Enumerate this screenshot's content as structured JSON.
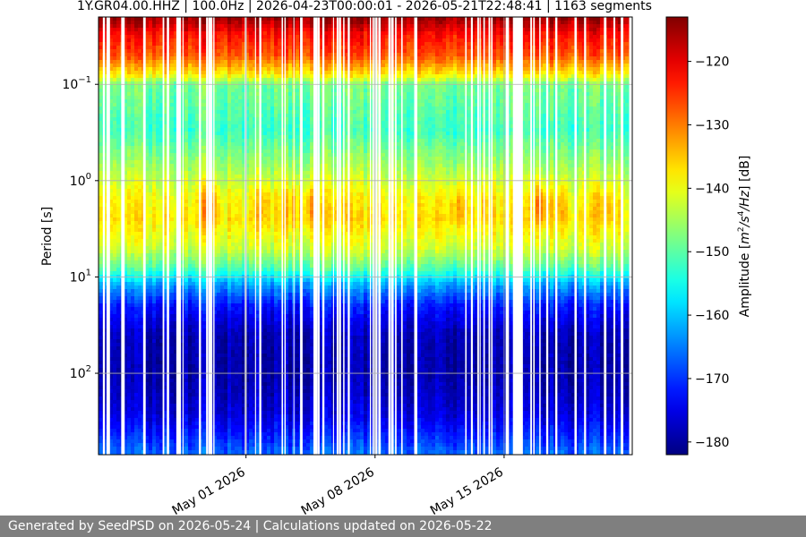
{
  "chart_data": {
    "type": "heatmap",
    "title": "1Y.GR04.00.HHZ | 100.0Hz | 2026-04-23T00:00:01 - 2026-05-21T22:48:41 | 1163 segments",
    "xlabel": "",
    "ylabel": "Period [s]",
    "colorbar_label": "Amplitude [m²/s⁴/Hz] [dB]",
    "colorbar_label_parts": {
      "pre": "Amplitude [",
      "base": "m",
      "exp1": "2",
      "slash1": "/",
      "s": "s",
      "exp2": "4",
      "slash2": "/",
      "hz": "Hz",
      "post": "] [dB]"
    },
    "colormap": "jet",
    "x_range": [
      "2026-04-23T00:00:01",
      "2026-05-21T22:48:41"
    ],
    "y_scale": "log",
    "y_inverted": true,
    "y_range": [
      0.02,
      700
    ],
    "y_ticks": [
      {
        "value": 0.1,
        "base": "10",
        "exp": "−1"
      },
      {
        "value": 1,
        "base": "10",
        "exp": "0"
      },
      {
        "value": 10,
        "base": "10",
        "exp": "1"
      },
      {
        "value": 100,
        "base": "10",
        "exp": "2"
      }
    ],
    "x_ticks": [
      {
        "date": "2026-05-01",
        "label": "May 01 2026"
      },
      {
        "date": "2026-05-08",
        "label": "May 08 2026"
      },
      {
        "date": "2026-05-15",
        "label": "May 15 2026"
      }
    ],
    "color_range_db": [
      -182,
      -113
    ],
    "colorbar_ticks": [
      -120,
      -130,
      -140,
      -150,
      -160,
      -170,
      -180
    ],
    "grid": true,
    "period_profile_db": [
      {
        "period": 0.02,
        "db": -114
      },
      {
        "period": 0.03,
        "db": -122
      },
      {
        "period": 0.05,
        "db": -127
      },
      {
        "period": 0.08,
        "db": -138
      },
      {
        "period": 0.1,
        "db": -148
      },
      {
        "period": 0.3,
        "db": -152
      },
      {
        "period": 0.7,
        "db": -145
      },
      {
        "period": 1.5,
        "db": -139
      },
      {
        "period": 2.5,
        "db": -137
      },
      {
        "period": 5,
        "db": -142
      },
      {
        "period": 8,
        "db": -150
      },
      {
        "period": 12,
        "db": -162
      },
      {
        "period": 20,
        "db": -172
      },
      {
        "period": 40,
        "db": -178
      },
      {
        "period": 100,
        "db": -179
      },
      {
        "period": 250,
        "db": -176
      },
      {
        "period": 400,
        "db": -172
      },
      {
        "period": 700,
        "db": -166
      }
    ],
    "microseism_peaks_db": [
      {
        "date": "2026-04-29T00:00:00",
        "db": -128
      },
      {
        "date": "2026-05-02T00:00:00",
        "db": -132
      },
      {
        "date": "2026-05-03T12:00:00",
        "db": -133
      },
      {
        "date": "2026-05-04T12:00:00",
        "db": -131
      },
      {
        "date": "2026-05-06T00:00:00",
        "db": -133
      },
      {
        "date": "2026-05-12T12:00:00",
        "db": -131
      },
      {
        "date": "2026-05-14T00:00:00",
        "db": -134
      },
      {
        "date": "2026-05-17T00:00:00",
        "db": -128
      },
      {
        "date": "2026-05-18T00:00:00",
        "db": -133
      },
      {
        "date": "2026-05-20T12:00:00",
        "db": -131
      }
    ],
    "data_gaps": [
      {
        "start": "2026-05-15T12:00:00",
        "end": "2026-05-16T00:00:00"
      },
      {
        "start": "2026-05-10T03:00:00",
        "end": "2026-05-10T06:00:00"
      },
      {
        "start": "2026-05-09T02:00:00",
        "end": "2026-05-09T04:00:00"
      }
    ]
  },
  "footer": {
    "text": "Generated by SeedPSD on 2026-05-24 | Calculations updated on 2026-05-22"
  }
}
